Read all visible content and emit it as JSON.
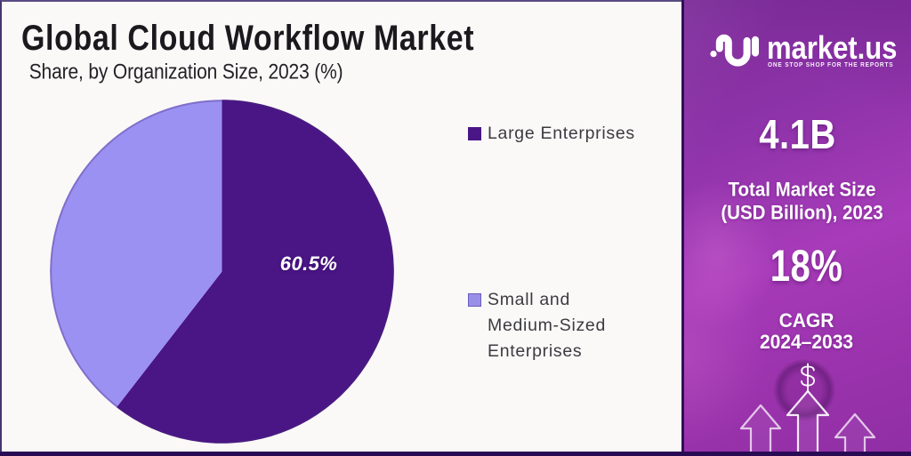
{
  "panel": {
    "title": "Global Cloud Workflow Market",
    "subtitle": "Share, by Organization Size, 2023 (%)"
  },
  "chart_data": {
    "type": "pie",
    "title": "Global Cloud Workflow Market",
    "subtitle": "Share, by Organization Size, 2023 (%)",
    "unit": "%",
    "start_angle": "top",
    "direction": "clockwise",
    "slices": [
      {
        "label": "Large Enterprises",
        "value": 60.5,
        "color": "#4a1585",
        "data_label": "60.5%"
      },
      {
        "label": "Small and Medium-Sized Enterprises",
        "value": 39.5,
        "color": "#9b91f2",
        "data_label": ""
      }
    ],
    "legend": {
      "position": "right",
      "items": [
        {
          "label": "Large Enterprises",
          "swatch": "#4a1585"
        },
        {
          "label": "Small and\nMedium-Sized\nEnterprises",
          "swatch": "#998fe6"
        }
      ]
    }
  },
  "sidebar": {
    "logo": {
      "brand": "market.us",
      "tagline": "ONE STOP SHOP FOR THE REPORTS"
    },
    "stats": [
      {
        "value": "4.1B",
        "label": "Total Market Size\n(USD Billion), 2023"
      },
      {
        "value": "18%",
        "label": "CAGR\n2024–2033"
      }
    ],
    "background": "#9a34ae"
  },
  "colors": {
    "slice_dark": "#4a1585",
    "slice_light": "#9b91f2",
    "sidebar_purple": "#9a34ae",
    "bottom_bar": "#290b54",
    "panel_bg": "#fbf9f8"
  }
}
